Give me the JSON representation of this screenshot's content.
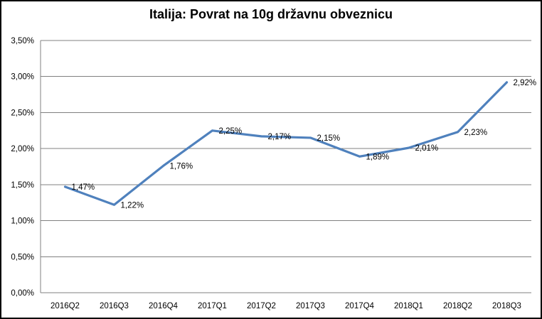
{
  "chart_data": {
    "type": "line",
    "title": "Italija: Povrat na 10g državnu obveznicu",
    "categories": [
      "2016Q2",
      "2016Q3",
      "2016Q4",
      "2017Q1",
      "2017Q2",
      "2017Q3",
      "2017Q4",
      "2018Q1",
      "2018Q2",
      "2018Q3"
    ],
    "series": [
      {
        "name": "Povrat na 10g državnu obveznicu",
        "values": [
          1.47,
          1.22,
          1.76,
          2.25,
          2.17,
          2.15,
          1.89,
          2.01,
          2.23,
          2.92
        ],
        "data_labels": [
          "1,47%",
          "1,22%",
          "1,76%",
          "2,25%",
          "2,17%",
          "2,15%",
          "1,89%",
          "2,01%",
          "2,23%",
          "2,92%"
        ],
        "color": "#4F81BD"
      }
    ],
    "xlabel": "",
    "ylabel": "",
    "ylim": [
      0,
      3.5
    ],
    "y_tick_values": [
      0.0,
      0.5,
      1.0,
      1.5,
      2.0,
      2.5,
      3.0,
      3.5
    ],
    "y_tick_labels": [
      "0,00%",
      "0,50%",
      "1,00%",
      "1,50%",
      "2,00%",
      "2,50%",
      "3,00%",
      "3,50%"
    ],
    "grid": true,
    "legend_position": "none",
    "gridline_color": "#808080",
    "axis_color": "#808080",
    "background_color": "#ffffff",
    "border_color": "#000000"
  }
}
